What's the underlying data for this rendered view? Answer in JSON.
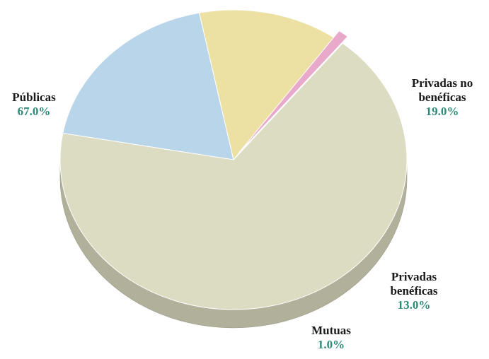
{
  "chart_data": {
    "type": "pie3d",
    "categories": [
      "Públicas",
      "Privadas no benéficas",
      "Privadas benéficas",
      "Mutuas"
    ],
    "values": [
      67.0,
      19.0,
      13.0,
      1.0
    ],
    "value_labels": [
      "67.0%",
      "19.0%",
      "13.0%",
      "1.0%"
    ],
    "colors": [
      "#dcdcc2",
      "#b9d5ea",
      "#ede0a3",
      "#e8a9cb"
    ],
    "exploded": [
      false,
      false,
      false,
      true
    ]
  }
}
